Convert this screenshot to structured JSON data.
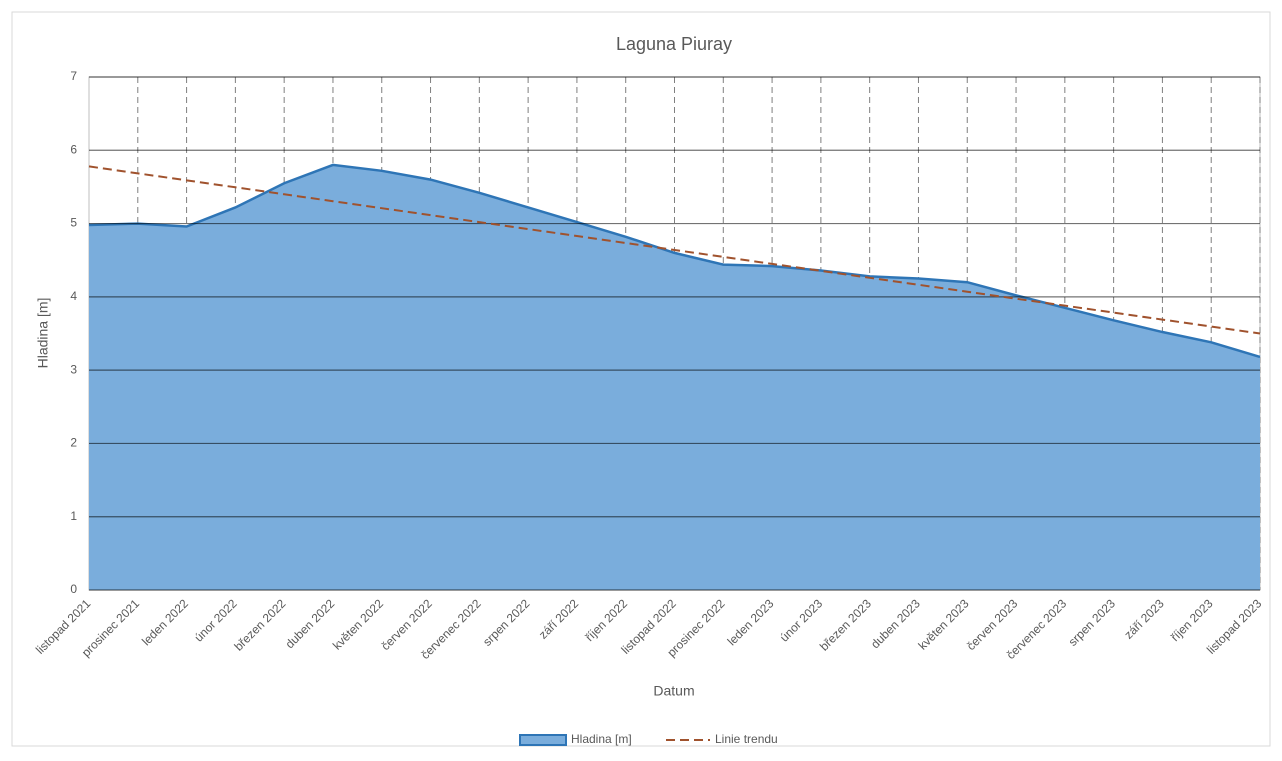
{
  "chart_data": {
    "type": "area",
    "title": "Laguna Piuray",
    "x_label": "Datum",
    "y_label": "Hladina [m]",
    "categories": [
      "listopad 2021",
      "prosinec 2021",
      "leden 2022",
      "únor 2022",
      "březen 2022",
      "duben 2022",
      "květen 2022",
      "červen 2022",
      "červenec 2022",
      "srpen 2022",
      "září 2022",
      "říjen 2022",
      "listopad 2022",
      "prosinec 2022",
      "leden 2023",
      "únor 2023",
      "březen 2023",
      "duben 2023",
      "květen 2023",
      "červen 2023",
      "červenec 2023",
      "srpen 2023",
      "září 2023",
      "říjen 2023",
      "listopad 2023"
    ],
    "series": [
      {
        "name": "Hladina [m]",
        "color": "#7aaddc",
        "line_color": "#2e75b6",
        "values": [
          4.98,
          5.0,
          4.96,
          5.22,
          5.55,
          5.8,
          5.72,
          5.6,
          5.42,
          5.22,
          5.02,
          4.82,
          4.6,
          4.44,
          4.42,
          4.36,
          4.28,
          4.25,
          4.2,
          4.02,
          3.85,
          3.68,
          3.52,
          3.38,
          3.18
        ]
      },
      {
        "name": "Linie trendu",
        "color": "#a0522d",
        "dashed": true,
        "values": [
          5.78,
          5.685,
          5.59,
          5.495,
          5.4,
          5.305,
          5.21,
          5.115,
          5.02,
          4.925,
          4.83,
          4.735,
          4.64,
          4.545,
          4.45,
          4.355,
          4.26,
          4.165,
          4.07,
          3.975,
          3.88,
          3.785,
          3.69,
          3.595,
          3.5
        ]
      }
    ],
    "ylim": [
      0,
      7
    ],
    "yticks": [
      0,
      1,
      2,
      3,
      4,
      5,
      6,
      7
    ],
    "grid": true,
    "legend": "bottom"
  }
}
